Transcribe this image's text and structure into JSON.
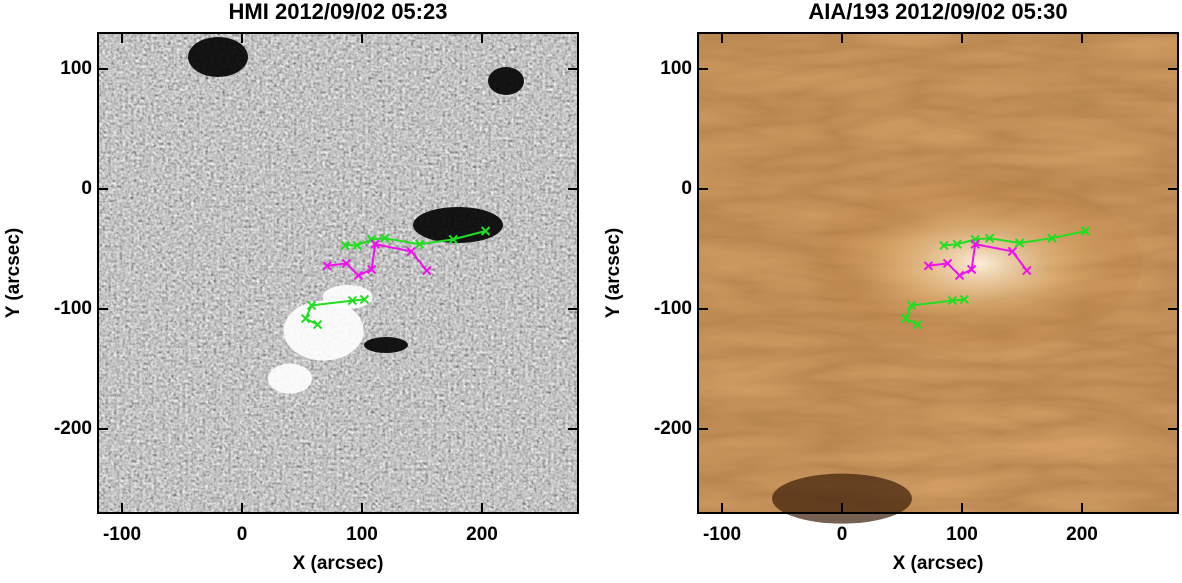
{
  "chart_data": [
    {
      "type": "line",
      "title": "HMI 2012/09/02 05:23",
      "x_label": "X (arcsec)",
      "y_label": "Y (arcsec)",
      "background": "magnetogram",
      "xlim": [
        -120,
        280
      ],
      "ylim": [
        -270,
        130
      ],
      "xticks": [
        -100,
        0,
        100,
        200
      ],
      "yticks": [
        -200,
        -100,
        0,
        100
      ],
      "series": [
        {
          "color": "#22dd22",
          "x": [
            86,
            96,
            108,
            119,
            148,
            176,
            203
          ],
          "values": [
            -47,
            -47,
            -42,
            -41,
            -46,
            -42,
            -35
          ]
        },
        {
          "color": "#22dd22",
          "x": [
            63,
            53,
            58,
            92,
            102
          ],
          "values": [
            -113,
            -108,
            -97,
            -93,
            -92
          ]
        },
        {
          "color": "#ee11ee",
          "x": [
            71,
            87,
            97,
            108,
            111,
            141,
            154
          ],
          "values": [
            -64,
            -62,
            -72,
            -67,
            -46,
            -52,
            -68
          ]
        }
      ]
    },
    {
      "type": "line",
      "title": "AIA/193 2012/09/02 05:30",
      "x_label": "X (arcsec)",
      "y_label": "Y (arcsec)",
      "background": "euv",
      "xlim": [
        -120,
        280
      ],
      "ylim": [
        -270,
        130
      ],
      "xticks": [
        -100,
        0,
        100,
        200
      ],
      "yticks": [
        -200,
        -100,
        0,
        100
      ],
      "series": [
        {
          "color": "#22dd22",
          "x": [
            85,
            96,
            111,
            123,
            148,
            175,
            203
          ],
          "values": [
            -47,
            -46,
            -42,
            -41,
            -45,
            -41,
            -35
          ]
        },
        {
          "color": "#22dd22",
          "x": [
            63,
            53,
            58,
            92,
            102
          ],
          "values": [
            -113,
            -108,
            -97,
            -93,
            -92
          ]
        },
        {
          "color": "#ee11ee",
          "x": [
            72,
            88,
            98,
            108,
            111,
            142,
            154
          ],
          "values": [
            -64,
            -62,
            -72,
            -67,
            -46,
            -52,
            -68
          ]
        }
      ]
    }
  ]
}
